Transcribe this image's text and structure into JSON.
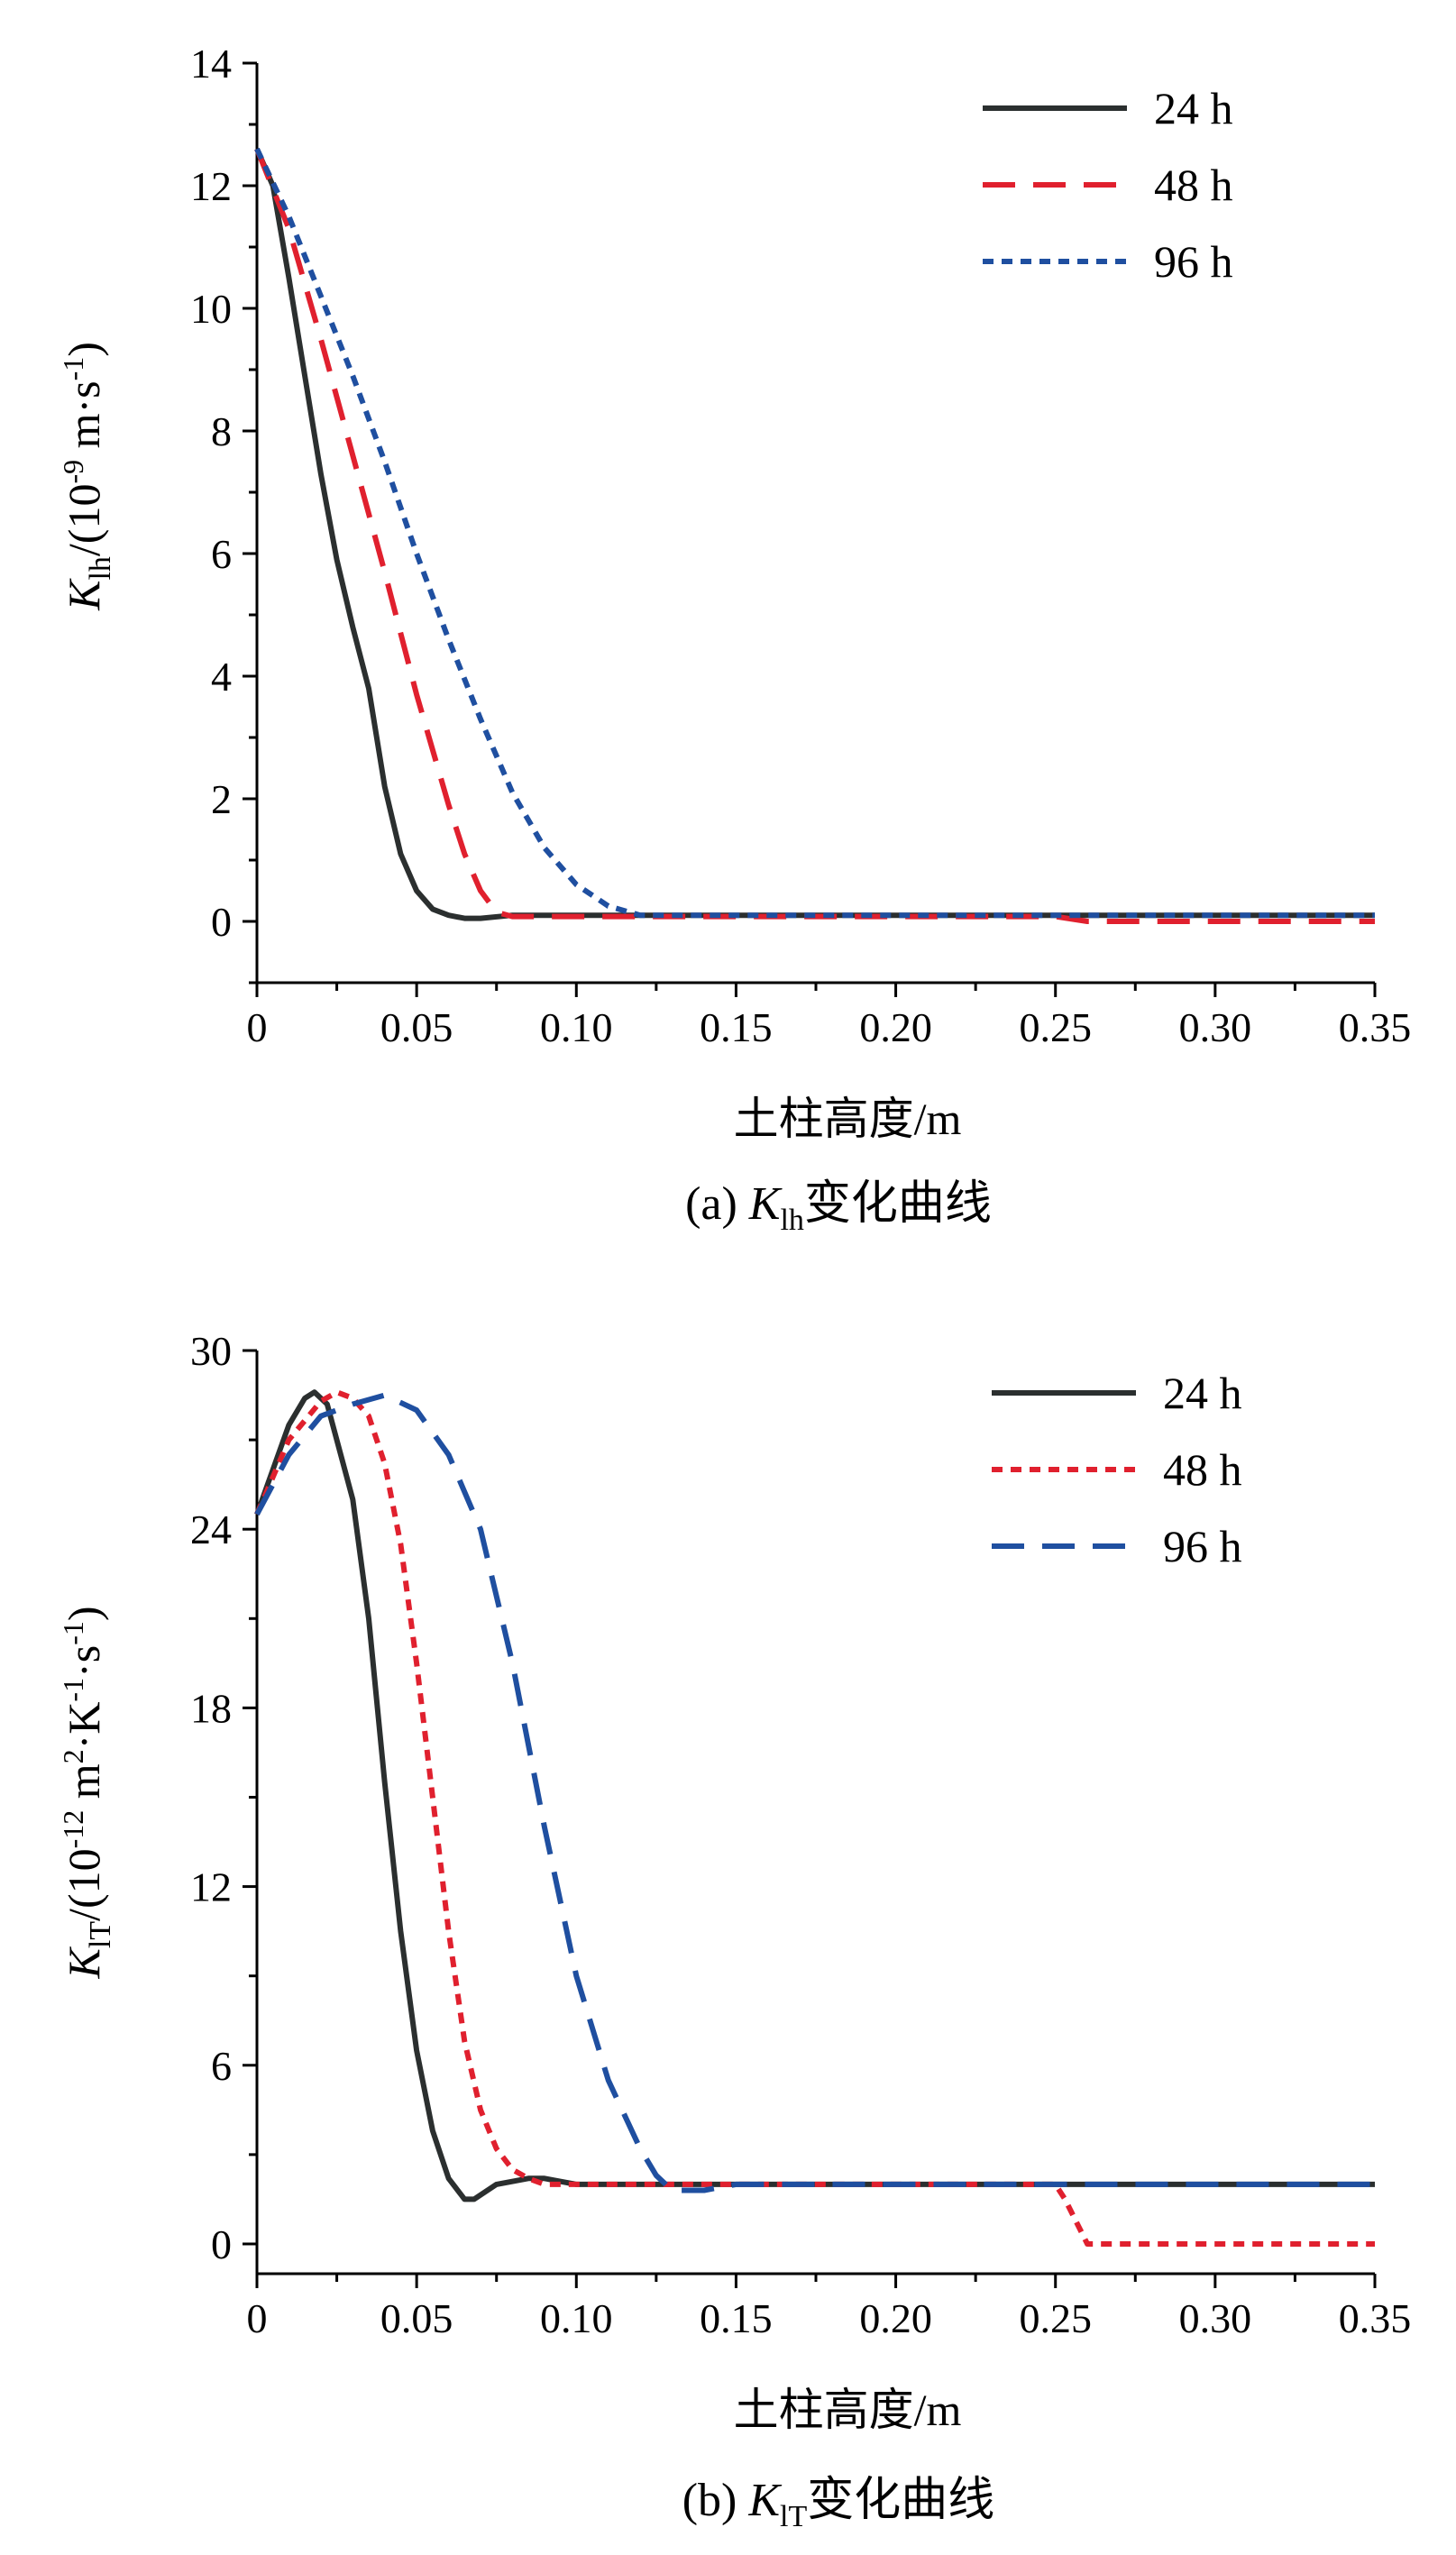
{
  "chart_data": [
    {
      "type": "line",
      "caption_prefix": "(a) ",
      "caption_var": "K",
      "caption_sub": "lh",
      "caption_suffix": "变化曲线",
      "xlabel": "土柱高度/m",
      "ylabel_var": "K",
      "ylabel_sub": "lh",
      "ylabel_unit_pre": "/(10",
      "ylabel_unit_exp": "-9",
      "ylabel_unit_post": " m·s",
      "ylabel_unit_exp2": "-1",
      "ylabel_unit_close": ")",
      "xlim": [
        0,
        0.35
      ],
      "ylim": [
        -1,
        14
      ],
      "xticks": [
        "0",
        "0.05",
        "0.10",
        "0.15",
        "0.20",
        "0.25",
        "0.30",
        "0.35"
      ],
      "yticks": [
        "0",
        "2",
        "4",
        "6",
        "8",
        "10",
        "12",
        "14"
      ],
      "legend_position": "top-right",
      "series": [
        {
          "name": "24 h",
          "color": "#2b2f2f",
          "dash": "solid",
          "x": [
            0,
            0.005,
            0.01,
            0.015,
            0.02,
            0.025,
            0.03,
            0.035,
            0.04,
            0.045,
            0.05,
            0.055,
            0.06,
            0.065,
            0.07,
            0.08,
            0.1,
            0.15,
            0.2,
            0.25,
            0.3,
            0.35
          ],
          "y": [
            12.6,
            12.0,
            10.5,
            8.9,
            7.3,
            5.9,
            4.8,
            3.8,
            2.2,
            1.1,
            0.5,
            0.2,
            0.1,
            0.05,
            0.05,
            0.1,
            0.1,
            0.1,
            0.1,
            0.1,
            0.1,
            0.1
          ]
        },
        {
          "name": "48 h",
          "color": "#e0202e",
          "dash": "long",
          "x": [
            0,
            0.01,
            0.02,
            0.03,
            0.04,
            0.05,
            0.06,
            0.065,
            0.07,
            0.075,
            0.08,
            0.1,
            0.15,
            0.2,
            0.25,
            0.26,
            0.3,
            0.35
          ],
          "y": [
            12.6,
            11.3,
            9.5,
            7.6,
            5.7,
            3.7,
            1.9,
            1.1,
            0.5,
            0.15,
            0.08,
            0.08,
            0.08,
            0.08,
            0.08,
            0.0,
            0.0,
            0.0
          ]
        },
        {
          "name": "96 h",
          "color": "#1f4fa0",
          "dash": "dot",
          "x": [
            0,
            0.01,
            0.02,
            0.03,
            0.04,
            0.05,
            0.06,
            0.07,
            0.08,
            0.09,
            0.1,
            0.11,
            0.12,
            0.13,
            0.15,
            0.2,
            0.25,
            0.3,
            0.35
          ],
          "y": [
            12.6,
            11.5,
            10.2,
            8.9,
            7.5,
            6.0,
            4.6,
            3.3,
            2.1,
            1.2,
            0.6,
            0.25,
            0.1,
            0.1,
            0.1,
            0.1,
            0.1,
            0.1,
            0.1
          ]
        }
      ]
    },
    {
      "type": "line",
      "caption_prefix": "(b) ",
      "caption_var": "K",
      "caption_sub": "lT",
      "caption_suffix": "变化曲线",
      "xlabel": "土柱高度/m",
      "ylabel_var": "K",
      "ylabel_sub": "lT",
      "ylabel_unit_pre": "/(10",
      "ylabel_unit_exp": "-12",
      "ylabel_unit_post": " m",
      "ylabel_unit_exp2": "2",
      "ylabel_unit_mid": "·K",
      "ylabel_unit_exp3": "-1",
      "ylabel_unit_mid2": "·s",
      "ylabel_unit_exp4": "-1",
      "ylabel_unit_close": ")",
      "xlim": [
        0,
        0.35
      ],
      "ylim": [
        -1,
        30
      ],
      "xticks": [
        "0",
        "0.05",
        "0.10",
        "0.15",
        "0.20",
        "0.25",
        "0.30",
        "0.35"
      ],
      "yticks": [
        "0",
        "6",
        "12",
        "18",
        "24",
        "30"
      ],
      "legend_position": "top-right",
      "series": [
        {
          "name": "24 h",
          "color": "#2b2f2f",
          "dash": "solid",
          "x": [
            0,
            0.005,
            0.01,
            0.015,
            0.018,
            0.022,
            0.03,
            0.035,
            0.04,
            0.045,
            0.05,
            0.055,
            0.06,
            0.065,
            0.068,
            0.075,
            0.085,
            0.09,
            0.1,
            0.15,
            0.2,
            0.25,
            0.3,
            0.35
          ],
          "y": [
            24.5,
            26.0,
            27.5,
            28.4,
            28.6,
            28.2,
            25.0,
            21.0,
            15.5,
            10.5,
            6.5,
            3.8,
            2.2,
            1.5,
            1.5,
            2.0,
            2.2,
            2.2,
            2.0,
            2.0,
            2.0,
            2.0,
            2.0,
            2.0
          ]
        },
        {
          "name": "48 h",
          "color": "#e0202e",
          "dash": "dot",
          "x": [
            0,
            0.01,
            0.02,
            0.025,
            0.03,
            0.035,
            0.04,
            0.045,
            0.05,
            0.055,
            0.06,
            0.065,
            0.07,
            0.075,
            0.08,
            0.085,
            0.09,
            0.1,
            0.15,
            0.2,
            0.25,
            0.253,
            0.26,
            0.3,
            0.35
          ],
          "y": [
            24.5,
            27.0,
            28.3,
            28.6,
            28.4,
            27.8,
            26.2,
            23.5,
            19.5,
            15.0,
            10.5,
            6.8,
            4.5,
            3.2,
            2.5,
            2.2,
            2.0,
            2.0,
            2.0,
            2.0,
            2.0,
            1.5,
            0.0,
            0.0,
            0.0
          ]
        },
        {
          "name": "96 h",
          "color": "#1f4fa0",
          "dash": "long",
          "x": [
            0,
            0.01,
            0.02,
            0.03,
            0.04,
            0.05,
            0.06,
            0.07,
            0.08,
            0.09,
            0.1,
            0.11,
            0.12,
            0.125,
            0.13,
            0.14,
            0.15,
            0.2,
            0.25,
            0.3,
            0.35
          ],
          "y": [
            24.5,
            26.5,
            27.8,
            28.2,
            28.5,
            28.0,
            26.5,
            24.0,
            19.5,
            14.0,
            9.0,
            5.5,
            3.2,
            2.3,
            1.8,
            1.8,
            2.0,
            2.0,
            2.0,
            2.0,
            2.0
          ]
        }
      ]
    }
  ]
}
